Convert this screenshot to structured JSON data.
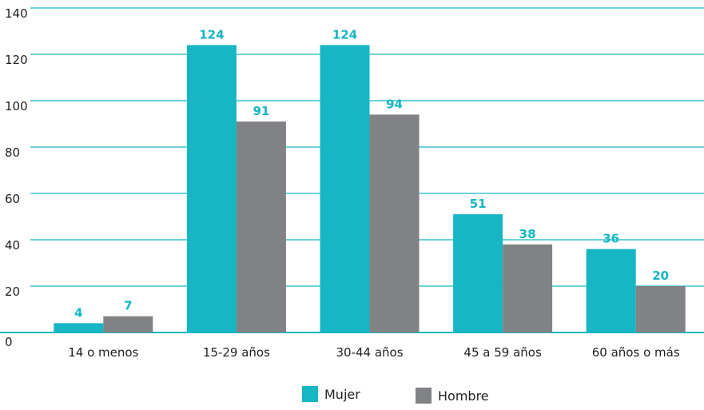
{
  "chart_data": {
    "type": "bar",
    "categories": [
      "14 o menos",
      "15-29 años",
      "30-44 años",
      "45 a 59 años",
      "60 años o más"
    ],
    "series": [
      {
        "name": "Mujer",
        "values": [
          4,
          124,
          124,
          51,
          36
        ],
        "color": "#16b6c4"
      },
      {
        "name": "Hombre",
        "values": [
          7,
          91,
          94,
          38,
          20
        ],
        "color": "#808285"
      }
    ],
    "ylim": [
      0,
      140
    ],
    "yticks": [
      0,
      20,
      40,
      60,
      80,
      100,
      120,
      140
    ],
    "grid": true,
    "grid_color": "#16b6c4",
    "label_color": "#16b6c4",
    "legend_position": "bottom"
  }
}
